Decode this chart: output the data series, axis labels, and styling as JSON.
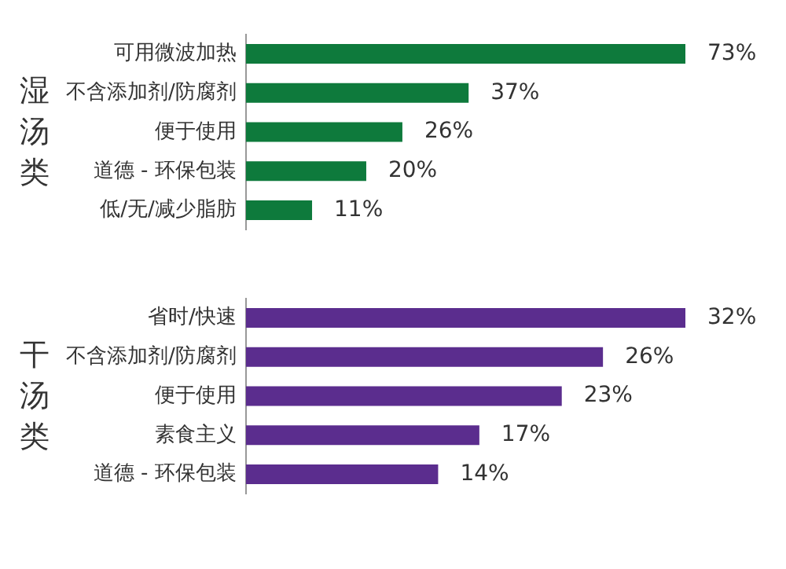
{
  "chart_data": [
    {
      "type": "bar",
      "orientation": "horizontal",
      "ylabel": "湿汤类",
      "categories": [
        "可用微波加热",
        "不含添加剂/防腐剂",
        "便于使用",
        "道德 - 环保包装",
        "低/无/减少脂肪"
      ],
      "values": [
        73,
        37,
        26,
        20,
        11
      ],
      "value_labels": [
        "73%",
        "37%",
        "26%",
        "20%",
        "11%"
      ],
      "color": "#0e7a3c",
      "tick_labels": "y"
    },
    {
      "type": "bar",
      "orientation": "horizontal",
      "ylabel": "干汤类",
      "categories": [
        "省时/快速",
        "不含添加剂/防腐剂",
        "便于使用",
        "素食主义",
        "道德 - 环保包装"
      ],
      "values": [
        32,
        26,
        23,
        17,
        14
      ],
      "value_labels": [
        "32%",
        "26%",
        "23%",
        "17%",
        "14%"
      ],
      "color": "#5b2d8e",
      "tick_labels": "y"
    }
  ]
}
